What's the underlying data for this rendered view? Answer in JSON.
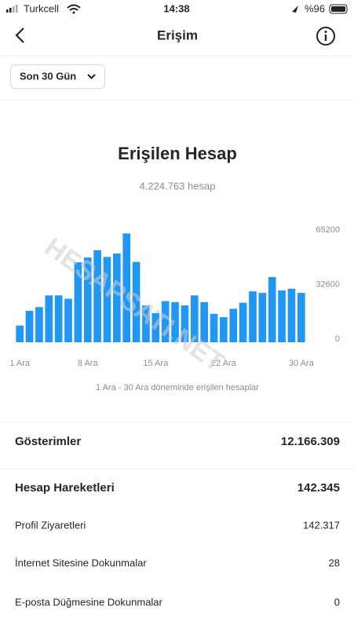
{
  "status_bar": {
    "carrier": "Turkcell",
    "time": "14:38",
    "battery": "%96"
  },
  "header": {
    "title": "Erişim"
  },
  "filter": {
    "label": "Son 30 Gün"
  },
  "watermark": "HESAPSATI.NET",
  "chart_data": {
    "type": "bar",
    "title": "Erişilen Hesap",
    "subtitle": "4.224.763 hesap",
    "caption": "1 Ara - 30 Ara döneminde erişilen hesaplar",
    "categories": [
      "1 Ara",
      null,
      null,
      null,
      null,
      null,
      null,
      "8 Ara",
      null,
      null,
      null,
      null,
      null,
      null,
      "15 Ara",
      null,
      null,
      null,
      null,
      null,
      null,
      "22 Ara",
      null,
      null,
      null,
      null,
      null,
      null,
      null,
      "30 Ara"
    ],
    "values": [
      10000,
      18800,
      21000,
      28000,
      28000,
      26000,
      47800,
      50700,
      55000,
      51000,
      53000,
      65000,
      48000,
      22000,
      17400,
      24600,
      24000,
      22000,
      28000,
      24000,
      17000,
      15000,
      20000,
      23600,
      30400,
      29500,
      39000,
      31000,
      32000,
      29500
    ],
    "color": "#1f97f3",
    "ylim": [
      0,
      65200
    ],
    "yticks": [
      0,
      32600,
      65200
    ],
    "grid": false
  },
  "stats": {
    "rows": [
      {
        "label": "Gösterimler",
        "value": "12.166.309"
      },
      {
        "label": "Hesap Hareketleri",
        "value": "142.345"
      },
      {
        "label": "Profil Ziyaretleri",
        "value": "142.317"
      },
      {
        "label": "İnternet Sitesine Dokunmalar",
        "value": "28"
      },
      {
        "label": "E-posta Düğmesine Dokunmalar",
        "value": "0"
      }
    ]
  }
}
